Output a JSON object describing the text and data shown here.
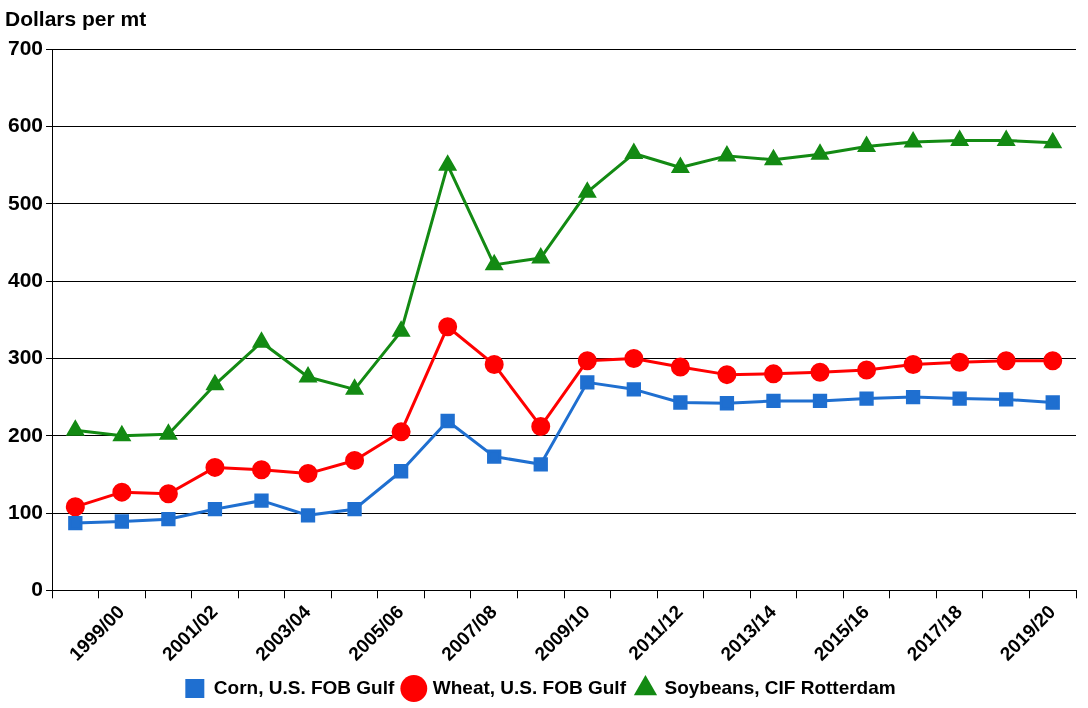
{
  "chart_data": {
    "type": "line",
    "ylabel": "Dollars per mt",
    "categories": [
      null,
      "1999/00",
      null,
      "2001/02",
      null,
      "2003/04",
      null,
      "2005/06",
      null,
      "2007/08",
      null,
      "2009/10",
      null,
      "2011/12",
      null,
      "2013/14",
      null,
      "2015/16",
      null,
      "2017/18",
      null,
      "2019/20"
    ],
    "series": [
      {
        "name": "Corn, U.S. FOB Gulf",
        "color": "#1f6fd0",
        "marker": "square",
        "values": [
          87,
          89,
          92,
          105,
          116,
          97,
          105,
          154,
          219,
          173,
          163,
          269,
          260,
          243,
          242,
          245,
          245,
          248,
          250,
          248,
          247,
          243
        ]
      },
      {
        "name": "Wheat, U.S. FOB Gulf",
        "color": "#ff0000",
        "marker": "circle",
        "values": [
          108,
          127,
          125,
          159,
          156,
          151,
          168,
          205,
          341,
          292,
          212,
          297,
          300,
          289,
          279,
          280,
          282,
          285,
          292,
          295,
          297,
          297
        ]
      },
      {
        "name": "Soybeans, CIF Rotterdam",
        "color": "#138a13",
        "marker": "triangle",
        "values": [
          207,
          200,
          202,
          266,
          321,
          276,
          260,
          335,
          550,
          421,
          430,
          515,
          565,
          547,
          562,
          557,
          564,
          574,
          580,
          582,
          582,
          579
        ]
      }
    ],
    "ylim": [
      0,
      700
    ],
    "yticks": [
      0,
      100,
      200,
      300,
      400,
      500,
      600,
      700
    ],
    "grid": "y",
    "legend": "bottom",
    "line_style": "solid"
  }
}
